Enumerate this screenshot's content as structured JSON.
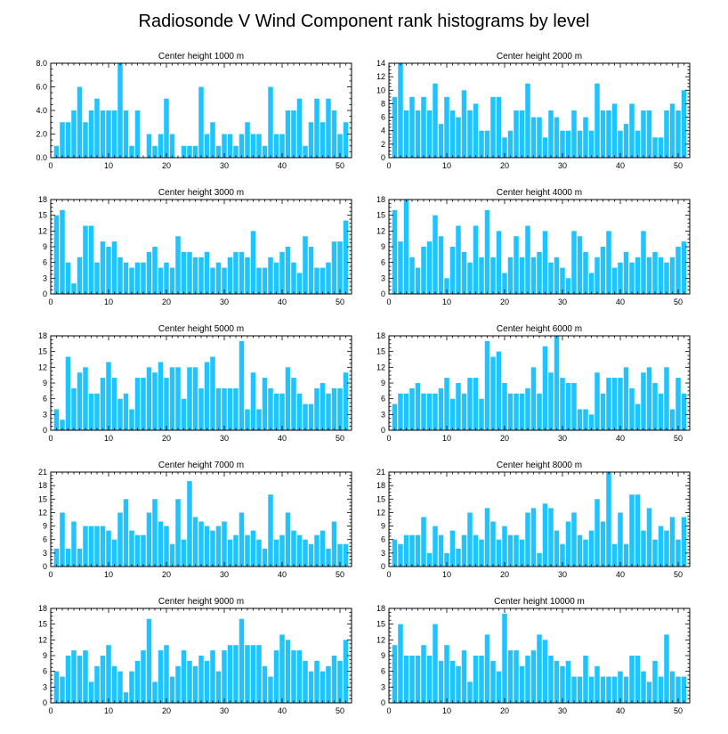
{
  "figure": {
    "title": "Radiosonde V Wind Component rank histograms by level",
    "bar_color": "#1EC3FF"
  },
  "chart_data": [
    {
      "type": "bar",
      "title": "Center height 1000 m",
      "x_start": 1,
      "xlim": [
        0,
        52
      ],
      "ylim": [
        0,
        8
      ],
      "xticks": [
        0,
        10,
        20,
        30,
        40,
        50
      ],
      "yticks": [
        0,
        2,
        4,
        6,
        8
      ],
      "ytick_labels": [
        "0.0",
        "2.0",
        "4.0",
        "6.0",
        "8.0"
      ],
      "values": [
        1,
        3,
        3,
        4,
        6,
        3,
        4,
        5,
        4,
        4,
        4,
        8,
        4,
        1,
        4,
        0,
        2,
        1,
        2,
        5,
        2,
        0,
        1,
        1,
        1,
        6,
        2,
        3,
        1,
        2,
        2,
        1,
        2,
        3,
        2,
        2,
        1,
        6,
        2,
        2,
        4,
        4,
        5,
        1,
        3,
        5,
        3,
        5,
        4,
        2,
        3
      ]
    },
    {
      "type": "bar",
      "title": "Center height 2000 m",
      "x_start": 1,
      "xlim": [
        0,
        52
      ],
      "ylim": [
        0,
        14
      ],
      "xticks": [
        0,
        10,
        20,
        30,
        40,
        50
      ],
      "yticks": [
        0,
        2,
        4,
        6,
        8,
        10,
        12,
        14
      ],
      "ytick_labels": [
        "0",
        "2",
        "4",
        "6",
        "8",
        "10",
        "12",
        "14"
      ],
      "values": [
        9,
        14,
        7,
        9,
        7,
        9,
        7,
        11,
        5,
        9,
        7,
        6,
        10,
        7,
        8,
        4,
        4,
        9,
        9,
        3,
        4,
        7,
        7,
        11,
        6,
        6,
        3,
        7,
        6,
        4,
        4,
        7,
        4,
        6,
        4,
        11,
        7,
        7,
        8,
        4,
        5,
        8,
        4,
        7,
        7,
        3,
        3,
        7,
        8,
        7,
        10
      ]
    },
    {
      "type": "bar",
      "title": "Center height 3000 m",
      "x_start": 1,
      "xlim": [
        0,
        52
      ],
      "ylim": [
        0,
        18
      ],
      "xticks": [
        0,
        10,
        20,
        30,
        40,
        50
      ],
      "yticks": [
        0,
        3,
        6,
        9,
        12,
        15,
        18
      ],
      "ytick_labels": [
        "0",
        "3",
        "6",
        "9",
        "12",
        "15",
        "18"
      ],
      "values": [
        15,
        16,
        6,
        2,
        7,
        13,
        13,
        6,
        10,
        9,
        10,
        7,
        6,
        5,
        6,
        6,
        8,
        9,
        5,
        6,
        5,
        11,
        8,
        8,
        7,
        7,
        8,
        5,
        6,
        5,
        7,
        8,
        8,
        7,
        12,
        5,
        5,
        7,
        6,
        8,
        9,
        6,
        4,
        11,
        9,
        5,
        5,
        6,
        10,
        10,
        14
      ]
    },
    {
      "type": "bar",
      "title": "Center height 4000 m",
      "x_start": 1,
      "xlim": [
        0,
        52
      ],
      "ylim": [
        0,
        18
      ],
      "xticks": [
        0,
        10,
        20,
        30,
        40,
        50
      ],
      "yticks": [
        0,
        3,
        6,
        9,
        12,
        15,
        18
      ],
      "ytick_labels": [
        "0",
        "3",
        "6",
        "9",
        "12",
        "15",
        "18"
      ],
      "values": [
        16,
        10,
        18,
        7,
        5,
        9,
        10,
        15,
        11,
        3,
        9,
        13,
        8,
        6,
        13,
        7,
        16,
        7,
        12,
        4,
        7,
        11,
        7,
        13,
        7,
        8,
        12,
        6,
        7,
        5,
        3,
        12,
        11,
        8,
        4,
        7,
        9,
        12,
        5,
        6,
        8,
        6,
        7,
        12,
        7,
        8,
        7,
        6,
        7,
        9,
        10
      ]
    },
    {
      "type": "bar",
      "title": "Center height 5000 m",
      "x_start": 1,
      "xlim": [
        0,
        52
      ],
      "ylim": [
        0,
        18
      ],
      "xticks": [
        0,
        10,
        20,
        30,
        40,
        50
      ],
      "yticks": [
        0,
        3,
        6,
        9,
        12,
        15,
        18
      ],
      "ytick_labels": [
        "0",
        "3",
        "6",
        "9",
        "12",
        "15",
        "18"
      ],
      "values": [
        4,
        2,
        14,
        8,
        11,
        12,
        7,
        7,
        10,
        13,
        10,
        6,
        7,
        4,
        10,
        10,
        12,
        11,
        13,
        10,
        12,
        12,
        6,
        12,
        12,
        8,
        13,
        14,
        8,
        8,
        8,
        8,
        17,
        4,
        11,
        4,
        10,
        8,
        7,
        7,
        12,
        10,
        7,
        5,
        5,
        8,
        9,
        7,
        8,
        8,
        11
      ]
    },
    {
      "type": "bar",
      "title": "Center height 6000 m",
      "x_start": 1,
      "xlim": [
        0,
        52
      ],
      "ylim": [
        0,
        18
      ],
      "xticks": [
        0,
        10,
        20,
        30,
        40,
        50
      ],
      "yticks": [
        0,
        3,
        6,
        9,
        12,
        15,
        18
      ],
      "ytick_labels": [
        "0",
        "3",
        "6",
        "9",
        "12",
        "15",
        "18"
      ],
      "values": [
        5,
        7,
        7,
        8,
        9,
        7,
        7,
        7,
        8,
        10,
        6,
        9,
        7,
        10,
        10,
        6,
        17,
        14,
        15,
        9,
        7,
        7,
        7,
        8,
        12,
        7,
        16,
        11,
        18,
        10,
        9,
        9,
        4,
        4,
        3,
        11,
        7,
        10,
        10,
        10,
        12,
        8,
        5,
        11,
        12,
        9,
        7,
        12,
        4,
        10,
        7
      ]
    },
    {
      "type": "bar",
      "title": "Center height 7000 m",
      "x_start": 1,
      "xlim": [
        0,
        52
      ],
      "ylim": [
        0,
        21
      ],
      "xticks": [
        0,
        10,
        20,
        30,
        40,
        50
      ],
      "yticks": [
        0,
        3,
        6,
        9,
        12,
        15,
        18,
        21
      ],
      "ytick_labels": [
        "0",
        "3",
        "6",
        "9",
        "12",
        "15",
        "18",
        "21"
      ],
      "values": [
        4,
        12,
        4,
        10,
        4,
        9,
        9,
        9,
        9,
        8,
        6,
        12,
        15,
        8,
        7,
        7,
        12,
        15,
        10,
        9,
        5,
        15,
        6,
        19,
        11,
        10,
        9,
        8,
        9,
        10,
        6,
        7,
        12,
        7,
        8,
        6,
        4,
        16,
        6,
        7,
        12,
        8,
        7,
        6,
        5,
        7,
        8,
        4,
        10,
        5,
        5
      ]
    },
    {
      "type": "bar",
      "title": "Center height 8000 m",
      "x_start": 1,
      "xlim": [
        0,
        52
      ],
      "ylim": [
        0,
        21
      ],
      "xticks": [
        0,
        10,
        20,
        30,
        40,
        50
      ],
      "yticks": [
        0,
        3,
        6,
        9,
        12,
        15,
        18,
        21
      ],
      "ytick_labels": [
        "0",
        "3",
        "6",
        "9",
        "12",
        "15",
        "18",
        "21"
      ],
      "values": [
        6,
        5,
        7,
        7,
        7,
        11,
        3,
        9,
        7,
        3,
        8,
        4,
        7,
        12,
        7,
        6,
        13,
        10,
        6,
        9,
        7,
        7,
        6,
        12,
        13,
        3,
        14,
        13,
        8,
        5,
        10,
        12,
        7,
        6,
        8,
        15,
        10,
        21,
        5,
        12,
        5,
        16,
        16,
        8,
        13,
        6,
        9,
        8,
        11,
        6,
        11
      ]
    },
    {
      "type": "bar",
      "title": "Center height 9000 m",
      "x_start": 1,
      "xlim": [
        0,
        52
      ],
      "ylim": [
        0,
        18
      ],
      "xticks": [
        0,
        10,
        20,
        30,
        40,
        50
      ],
      "yticks": [
        0,
        3,
        6,
        9,
        12,
        15,
        18
      ],
      "ytick_labels": [
        "0",
        "3",
        "6",
        "9",
        "12",
        "15",
        "18"
      ],
      "values": [
        6,
        5,
        9,
        10,
        9,
        10,
        4,
        7,
        9,
        11,
        7,
        6,
        2,
        6,
        8,
        10,
        16,
        4,
        10,
        11,
        5,
        7,
        10,
        8,
        7,
        9,
        8,
        10,
        6,
        10,
        11,
        11,
        16,
        11,
        11,
        11,
        7,
        5,
        10,
        13,
        12,
        10,
        10,
        8,
        6,
        8,
        6,
        7,
        9,
        8,
        12
      ]
    },
    {
      "type": "bar",
      "title": "Center height 10000 m",
      "x_start": 1,
      "xlim": [
        0,
        52
      ],
      "ylim": [
        0,
        18
      ],
      "xticks": [
        0,
        10,
        20,
        30,
        40,
        50
      ],
      "yticks": [
        0,
        3,
        6,
        9,
        12,
        15,
        18
      ],
      "ytick_labels": [
        "0",
        "3",
        "6",
        "9",
        "12",
        "15",
        "18"
      ],
      "values": [
        11,
        15,
        9,
        9,
        9,
        11,
        9,
        15,
        8,
        11,
        8,
        7,
        10,
        4,
        9,
        9,
        13,
        8,
        6,
        17,
        10,
        10,
        7,
        9,
        10,
        13,
        12,
        9,
        8,
        7,
        8,
        5,
        5,
        9,
        5,
        7,
        5,
        5,
        5,
        6,
        5,
        9,
        9,
        6,
        4,
        8,
        5,
        13,
        6,
        5,
        5
      ]
    }
  ]
}
